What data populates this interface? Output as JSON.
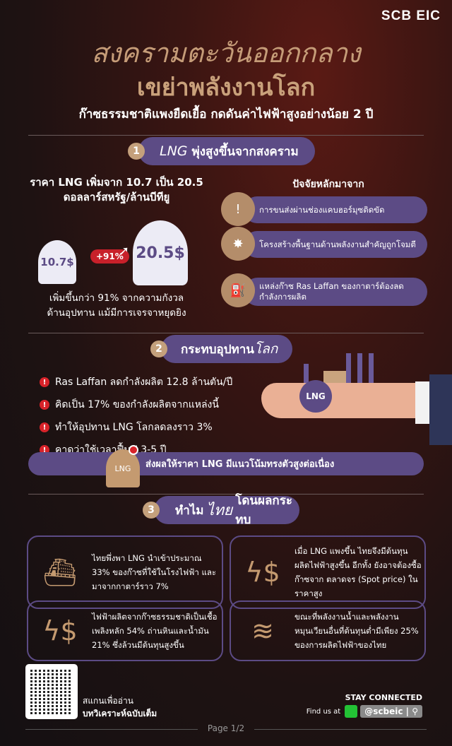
{
  "brand": {
    "logo": "SCB EIC"
  },
  "header": {
    "title_line1": "สงครามตะวันออกกลาง",
    "title_line2": "เขย่าพลังงานโลก",
    "subtitle": "ก๊าซธรรมชาติแพงยืดเยื้อ กดดันค่าไฟฟ้าสูงอย่างน้อย 2 ปี"
  },
  "section1": {
    "number": "1",
    "title_en": "LNG",
    "title": "พุ่งสูงขึ้นจากสงคราม",
    "price_line1": "ราคา LNG เพิ่มจาก 10.7 เป็น 20.5",
    "price_line2": "ดอลลาร์สหรัฐ/ล้านบีทียู",
    "tank_before": "10.7$",
    "tank_after": "20.5$",
    "change": "+91%",
    "note_line1": "เพิ่มขึ้นกว่า 91% จากความกังวล",
    "note_line2": "ด้านอุปทาน แม้มีการเจรจาหยุดยิง",
    "factors_title": "ปัจจัยหลักมาจาก",
    "factors": [
      {
        "icon": "ship-alert-icon",
        "text": "การขนส่งผ่านช่องแคบฮอร์มุซติดขัด"
      },
      {
        "icon": "missile-explosion-icon",
        "text": "โครงสร้างพื้นฐานด้านพลังงานสำคัญถูกโจมตี"
      },
      {
        "icon": "gas-plant-icon",
        "text": "แหล่งก๊าซ Ras Laffan ของกาตาร์ต้องลดกำลังการผลิต"
      }
    ]
  },
  "section2": {
    "number": "2",
    "title": "กระทบอุปทาน",
    "title_italic": "โลก",
    "bullets": [
      "Ras Laffan ลดกำลังผลิต 12.8 ล้านตัน/ปี",
      "คิดเป็น 17% ของกำลังผลิตจากแหล่งนี้",
      "ทำให้อุปทาน LNG โลกลดลงราว 3%",
      "คาดว่าใช้เวลาฟื้นฟู 3-5 ปี"
    ],
    "hand_tank_label": "LNG",
    "banner_tank_label": "LNG",
    "banner": "ส่งผลให้ราคา LNG มีแนวโน้มทรงตัวสูงต่อเนื่อง"
  },
  "section3": {
    "number": "3",
    "title_pre": "ทำไม",
    "title_italic": "ไทย",
    "title_post": "โดนผลกระทบ",
    "cards": [
      {
        "icon": "ship-icon",
        "text": "ไทยพึ่งพา LNG นำเข้าประมาณ 33% ของก๊าซที่ใช้ในโรงไฟฟ้า และมาจากกาตาร์ราว 7%"
      },
      {
        "icon": "power-cost-icon",
        "text": "เมื่อ LNG แพงขึ้น ไทยจึงมีต้นทุนผลิตไฟฟ้าสูงขึ้น อีกทั้ง ยังอาจต้องซื้อก๊าซจาก ตลาดจร (Spot price) ในราคาสูง"
      },
      {
        "icon": "electricity-cost-chart-icon",
        "text": "ไฟฟ้าผลิตจากก๊าซธรรมชาติเป็นเชื้อเพลิงหลัก 54% ถ่านหินและน้ำมัน 21% ซึ่งล้วนมีต้นทุนสูงขึ้น"
      },
      {
        "icon": "hydro-dam-icon",
        "text": "ขณะที่พลังงานน้ำและพลังงานหมุนเวียนอื่นที่ต้นทุนต่ำมีเพียง 25% ของการผลิตไฟฟ้าของไทย"
      }
    ]
  },
  "footer": {
    "qr_line1": "สแกนเพื่ออ่าน",
    "qr_line2": "บทวิเคราะห์ฉบับเต็ม",
    "stay": "STAY CONNECTED",
    "find": "Find us at",
    "handle": "@scbeic",
    "page_label": "Page",
    "page": "1/2"
  },
  "colors": {
    "accent_purple": "#5c4b85",
    "gold": "#c49a70",
    "alert_red": "#d8232a"
  }
}
